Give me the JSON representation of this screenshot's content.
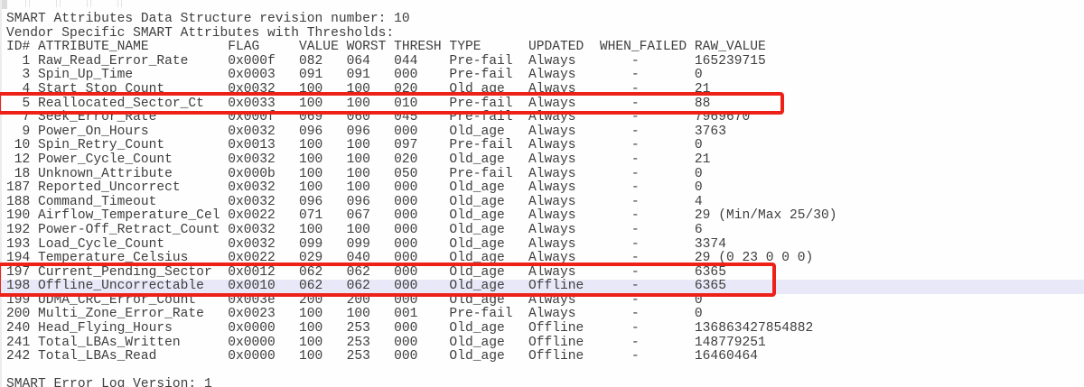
{
  "app": {
    "title_lines": [
      "SMART Attributes Data Structure revision number: 10",
      "Vendor Specific SMART Attributes with Thresholds:"
    ],
    "footer_line": "SMART Error Log Version: 1"
  },
  "table": {
    "headers": [
      "ID#",
      "ATTRIBUTE_NAME",
      "FLAG",
      "VALUE",
      "WORST",
      "THRESH",
      "TYPE",
      "UPDATED",
      "WHEN_FAILED",
      "RAW_VALUE"
    ],
    "rows": [
      {
        "id": "1",
        "name": "Raw_Read_Error_Rate",
        "flag": "0x000f",
        "value": "082",
        "worst": "064",
        "thresh": "044",
        "type": "Pre-fail",
        "updated": "Always",
        "when_failed": "-",
        "raw": "165239715",
        "highlighted": false
      },
      {
        "id": "3",
        "name": "Spin_Up_Time",
        "flag": "0x0003",
        "value": "091",
        "worst": "091",
        "thresh": "000",
        "type": "Pre-fail",
        "updated": "Always",
        "when_failed": "-",
        "raw": "0",
        "highlighted": false
      },
      {
        "id": "4",
        "name": "Start_Stop_Count",
        "flag": "0x0032",
        "value": "100",
        "worst": "100",
        "thresh": "020",
        "type": "Old_age",
        "updated": "Always",
        "when_failed": "-",
        "raw": "21",
        "highlighted": false
      },
      {
        "id": "5",
        "name": "Reallocated_Sector_Ct",
        "flag": "0x0033",
        "value": "100",
        "worst": "100",
        "thresh": "010",
        "type": "Pre-fail",
        "updated": "Always",
        "when_failed": "-",
        "raw": "88",
        "highlighted": false
      },
      {
        "id": "7",
        "name": "Seek_Error_Rate",
        "flag": "0x000f",
        "value": "069",
        "worst": "060",
        "thresh": "045",
        "type": "Pre-fail",
        "updated": "Always",
        "when_failed": "-",
        "raw": "7969670",
        "highlighted": false
      },
      {
        "id": "9",
        "name": "Power_On_Hours",
        "flag": "0x0032",
        "value": "096",
        "worst": "096",
        "thresh": "000",
        "type": "Old_age",
        "updated": "Always",
        "when_failed": "-",
        "raw": "3763",
        "highlighted": false
      },
      {
        "id": "10",
        "name": "Spin_Retry_Count",
        "flag": "0x0013",
        "value": "100",
        "worst": "100",
        "thresh": "097",
        "type": "Pre-fail",
        "updated": "Always",
        "when_failed": "-",
        "raw": "0",
        "highlighted": false
      },
      {
        "id": "12",
        "name": "Power_Cycle_Count",
        "flag": "0x0032",
        "value": "100",
        "worst": "100",
        "thresh": "020",
        "type": "Old_age",
        "updated": "Always",
        "when_failed": "-",
        "raw": "21",
        "highlighted": false
      },
      {
        "id": "18",
        "name": "Unknown_Attribute",
        "flag": "0x000b",
        "value": "100",
        "worst": "100",
        "thresh": "050",
        "type": "Pre-fail",
        "updated": "Always",
        "when_failed": "-",
        "raw": "0",
        "highlighted": false
      },
      {
        "id": "187",
        "name": "Reported_Uncorrect",
        "flag": "0x0032",
        "value": "100",
        "worst": "100",
        "thresh": "000",
        "type": "Old_age",
        "updated": "Always",
        "when_failed": "-",
        "raw": "0",
        "highlighted": false
      },
      {
        "id": "188",
        "name": "Command_Timeout",
        "flag": "0x0032",
        "value": "096",
        "worst": "096",
        "thresh": "000",
        "type": "Old_age",
        "updated": "Always",
        "when_failed": "-",
        "raw": "4",
        "highlighted": false
      },
      {
        "id": "190",
        "name": "Airflow_Temperature_Cel",
        "flag": "0x0022",
        "value": "071",
        "worst": "067",
        "thresh": "000",
        "type": "Old_age",
        "updated": "Always",
        "when_failed": "-",
        "raw": "29 (Min/Max 25/30)",
        "highlighted": false
      },
      {
        "id": "192",
        "name": "Power-Off_Retract_Count",
        "flag": "0x0032",
        "value": "100",
        "worst": "100",
        "thresh": "000",
        "type": "Old_age",
        "updated": "Always",
        "when_failed": "-",
        "raw": "6",
        "highlighted": false
      },
      {
        "id": "193",
        "name": "Load_Cycle_Count",
        "flag": "0x0032",
        "value": "099",
        "worst": "099",
        "thresh": "000",
        "type": "Old_age",
        "updated": "Always",
        "when_failed": "-",
        "raw": "3374",
        "highlighted": false
      },
      {
        "id": "194",
        "name": "Temperature_Celsius",
        "flag": "0x0022",
        "value": "029",
        "worst": "040",
        "thresh": "000",
        "type": "Old_age",
        "updated": "Always",
        "when_failed": "-",
        "raw": "29 (0 23 0 0 0)",
        "highlighted": false
      },
      {
        "id": "197",
        "name": "Current_Pending_Sector",
        "flag": "0x0012",
        "value": "062",
        "worst": "062",
        "thresh": "000",
        "type": "Old_age",
        "updated": "Always",
        "when_failed": "-",
        "raw": "6365",
        "highlighted": false
      },
      {
        "id": "198",
        "name": "Offline_Uncorrectable",
        "flag": "0x0010",
        "value": "062",
        "worst": "062",
        "thresh": "000",
        "type": "Old_age",
        "updated": "Offline",
        "when_failed": "-",
        "raw": "6365",
        "highlighted": true
      },
      {
        "id": "199",
        "name": "UDMA_CRC_Error_Count",
        "flag": "0x003e",
        "value": "200",
        "worst": "200",
        "thresh": "000",
        "type": "Old_age",
        "updated": "Always",
        "when_failed": "-",
        "raw": "0",
        "highlighted": false
      },
      {
        "id": "200",
        "name": "Multi_Zone_Error_Rate",
        "flag": "0x0023",
        "value": "100",
        "worst": "100",
        "thresh": "001",
        "type": "Pre-fail",
        "updated": "Always",
        "when_failed": "-",
        "raw": "0",
        "highlighted": false
      },
      {
        "id": "240",
        "name": "Head_Flying_Hours",
        "flag": "0x0000",
        "value": "100",
        "worst": "253",
        "thresh": "000",
        "type": "Old_age",
        "updated": "Offline",
        "when_failed": "-",
        "raw": "136863427854882",
        "highlighted": false
      },
      {
        "id": "241",
        "name": "Total_LBAs_Written",
        "flag": "0x0000",
        "value": "100",
        "worst": "253",
        "thresh": "000",
        "type": "Old_age",
        "updated": "Offline",
        "when_failed": "-",
        "raw": "148779251",
        "highlighted": false
      },
      {
        "id": "242",
        "name": "Total_LBAs_Read",
        "flag": "0x0000",
        "value": "100",
        "worst": "253",
        "thresh": "000",
        "type": "Old_age",
        "updated": "Offline",
        "when_failed": "-",
        "raw": "16460464",
        "highlighted": false
      }
    ]
  },
  "annotations": {
    "red_box_color": "#ee2118",
    "row_highlight_color": "#e8e8f8",
    "boxes": [
      {
        "name": "reallocated-sector-ct-callout",
        "rows": [
          "5"
        ]
      },
      {
        "name": "pending-and-offline-sectors-callout",
        "rows": [
          "197",
          "198"
        ]
      }
    ]
  }
}
